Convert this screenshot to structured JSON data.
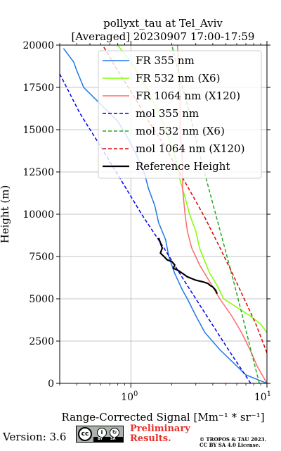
{
  "chart_data": {
    "type": "line",
    "title": "pollyxt_tau at Tel_Aviv",
    "subtitle": "[Averaged] 20230907 17:00-17:59",
    "xlabel": "Range-Corrected Signal [Mm⁻¹ * sr⁻¹]",
    "ylabel": "Height (m)",
    "xscale": "log",
    "xlim": [
      0.3,
      10
    ],
    "ylim": [
      0,
      20000
    ],
    "x_ticks": [
      "10^0",
      "10^1"
    ],
    "y_ticks": [
      0,
      2500,
      5000,
      7500,
      10000,
      12500,
      15000,
      17500,
      20000
    ],
    "grid": true,
    "legend": "top-right",
    "series": [
      {
        "name": "FR 355 nm",
        "color": "#1f77e8",
        "style": "solid",
        "x": [
          10,
          7.0,
          4.5,
          3.5,
          3.0,
          2.6,
          2.4,
          2.1,
          1.9,
          1.8,
          1.6,
          1.5,
          1.35,
          1.25,
          1.1,
          0.95,
          0.8,
          0.6,
          0.45,
          0.4,
          0.38,
          0.32
        ],
        "y": [
          0,
          500,
          2000,
          3000,
          4000,
          5000,
          5500,
          6500,
          7500,
          8500,
          9500,
          10500,
          11500,
          12500,
          13500,
          14500,
          15500,
          16500,
          17500,
          18500,
          19000,
          19800
        ]
      },
      {
        "name": "FR 532 nm (X6)",
        "color": "#7fff00",
        "style": "solid",
        "x": [
          10,
          9.0,
          7.5,
          6.0,
          4.8,
          4.3,
          3.8,
          3.5,
          3.2,
          3.0,
          2.7,
          2.5,
          2.3,
          2.2,
          2.1,
          1.9,
          1.6,
          1.3,
          1.0,
          0.8
        ],
        "y": [
          3000,
          3500,
          4000,
          4500,
          5000,
          5800,
          6500,
          7200,
          8000,
          9000,
          10000,
          11000,
          12000,
          12800,
          13500,
          14500,
          16000,
          17500,
          19000,
          20000
        ]
      },
      {
        "name": "FR 1064 nm (X120)",
        "color": "#ff6b6b",
        "style": "solid",
        "x": [
          10,
          8.5,
          7.5,
          6.5,
          5.5,
          4.5,
          3.8,
          3.2,
          2.8,
          2.6,
          2.5,
          2.4,
          2.4,
          2.3,
          2.3,
          2.2
        ],
        "y": [
          0,
          1000,
          2000,
          3000,
          4000,
          5000,
          6000,
          7000,
          8000,
          9000,
          10000,
          11500,
          13000,
          15000,
          17000,
          20000
        ]
      },
      {
        "name": "mol 355 nm",
        "color": "#0000ee",
        "style": "dashed",
        "x": [
          7.6,
          5.2,
          3.6,
          2.5,
          1.75,
          1.2,
          0.85,
          0.6,
          0.42,
          0.3
        ],
        "y": [
          0,
          2000,
          4000,
          6000,
          8000,
          10000,
          12000,
          14000,
          16000,
          18300
        ]
      },
      {
        "name": "mol 532 nm (X6)",
        "color": "#22aa22",
        "style": "dashed",
        "x": [
          8.8,
          7.6,
          6.6,
          5.7,
          4.9,
          4.2,
          3.6,
          3.1,
          2.7,
          2.3,
          2.0
        ],
        "y": [
          0,
          2000,
          4000,
          6000,
          8000,
          10000,
          12000,
          14000,
          16000,
          18000,
          20000
        ]
      },
      {
        "name": "mol 1064 nm (X120)",
        "color": "#dd0000",
        "style": "dashed",
        "x": [
          10,
          8.3,
          6.8,
          5.5,
          4.4,
          3.5,
          2.8,
          2.2,
          1.75,
          1.35,
          1.05,
          0.8,
          0.62
        ],
        "y": [
          1800,
          3500,
          5000,
          6600,
          8200,
          9800,
          11200,
          12700,
          14100,
          15500,
          17000,
          18500,
          20000
        ]
      },
      {
        "name": "Reference Height",
        "color": "#000000",
        "style": "solid",
        "x": [
          1.6,
          1.65,
          1.7,
          1.65,
          1.75,
          1.85,
          2.0,
          2.1,
          2.05,
          2.2,
          2.4,
          2.6,
          3.0,
          3.4,
          3.7,
          3.8,
          4.0,
          4.1,
          4.2,
          4.3
        ],
        "y": [
          8600,
          8300,
          8000,
          7700,
          7500,
          7300,
          7200,
          7000,
          6800,
          6700,
          6500,
          6300,
          6100,
          6000,
          5900,
          5800,
          5700,
          5600,
          5500,
          5300
        ]
      }
    ]
  },
  "footer": {
    "version": "Version: 3.6",
    "cc_label": "cc",
    "by_label": "BY",
    "sa_label": "SA",
    "preliminary_line1": "Preliminary",
    "preliminary_line2": "Results.",
    "copyright_line1": "© TROPOS & TAU 2023.",
    "copyright_line2": "CC BY SA 4.0 License."
  }
}
